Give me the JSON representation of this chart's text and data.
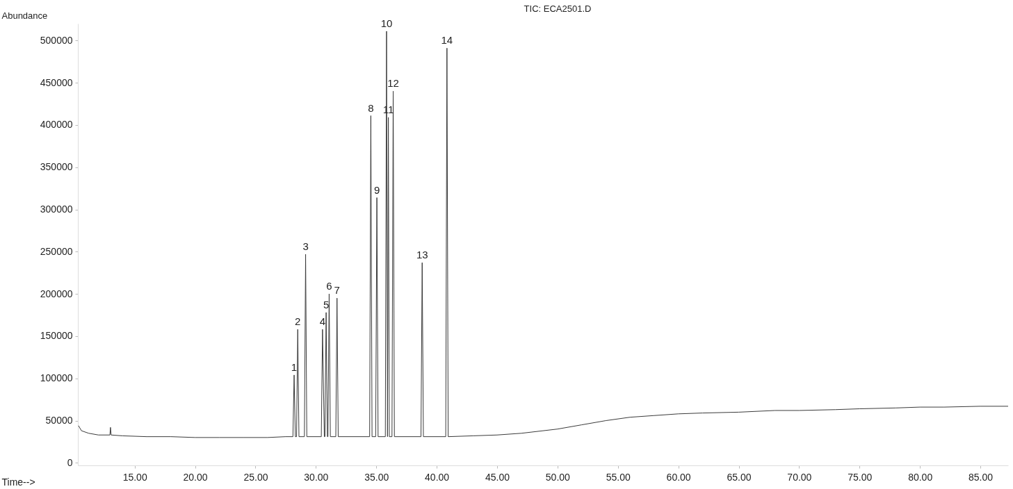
{
  "chart_data": {
    "type": "line",
    "title": "TIC: ECA2501.D",
    "xlabel": "Time-->",
    "ylabel": "Abundance",
    "x": [
      10.35,
      10.6,
      11.2,
      12.0,
      12.95,
      13.0,
      13.05,
      14,
      16,
      18,
      20,
      22,
      24,
      26,
      27.5,
      28.1,
      28.2,
      28.3,
      28.4,
      28.5,
      28.6,
      29.05,
      29.15,
      29.25,
      30.45,
      30.55,
      30.7,
      30.75,
      30.85,
      30.95,
      31.0,
      31.1,
      31.2,
      31.65,
      31.75,
      31.85,
      34.45,
      34.55,
      34.65,
      34.95,
      35.05,
      35.15,
      35.75,
      35.85,
      35.93,
      36.0,
      36.08,
      36.3,
      36.4,
      36.5,
      38.7,
      38.8,
      38.9,
      40.75,
      40.85,
      40.95,
      43,
      45,
      47,
      50,
      52,
      54,
      56,
      58,
      60,
      62,
      65,
      68,
      70,
      73,
      75,
      78,
      80,
      82,
      85,
      87.3
    ],
    "series": [
      {
        "color": "#3a3a3a",
        "values": [
          44000,
          38000,
          35000,
          33000,
          33000,
          42000,
          33000,
          32000,
          31000,
          31000,
          30000,
          30000,
          30000,
          30000,
          31000,
          31000,
          104000,
          31000,
          31000,
          158000,
          31000,
          31000,
          247000,
          31000,
          31000,
          158000,
          31000,
          31000,
          178000,
          31000,
          31000,
          200000,
          31000,
          31000,
          195000,
          31000,
          31000,
          411000,
          31000,
          31000,
          314000,
          31000,
          31000,
          511000,
          31000,
          409000,
          31000,
          31000,
          440000,
          31000,
          31000,
          237000,
          31000,
          31000,
          491000,
          31000,
          32000,
          33000,
          35000,
          40000,
          45000,
          50000,
          54000,
          56000,
          58000,
          59000,
          60000,
          62000,
          62000,
          63000,
          64000,
          65000,
          66000,
          66000,
          67000,
          67000
        ]
      }
    ],
    "xlim": [
      10.3,
      87.3
    ],
    "xticks": [
      {
        "value": 15,
        "label": "15.00"
      },
      {
        "value": 20,
        "label": "20.00"
      },
      {
        "value": 25,
        "label": "25.00"
      },
      {
        "value": 30,
        "label": "30.00"
      },
      {
        "value": 35,
        "label": "35.00"
      },
      {
        "value": 40,
        "label": "40.00"
      },
      {
        "value": 45,
        "label": "45.00"
      },
      {
        "value": 50,
        "label": "50.00"
      },
      {
        "value": 55,
        "label": "55.00"
      },
      {
        "value": 60,
        "label": "60.00"
      },
      {
        "value": 65,
        "label": "65.00"
      },
      {
        "value": 70,
        "label": "70.00"
      },
      {
        "value": 75,
        "label": "75.00"
      },
      {
        "value": 80,
        "label": "80.00"
      },
      {
        "value": 85,
        "label": "85.00"
      }
    ],
    "ylim": [
      -3000,
      520000
    ],
    "yticks": [
      0,
      50000,
      100000,
      150000,
      200000,
      250000,
      300000,
      350000,
      400000,
      450000,
      500000
    ],
    "grid": false,
    "annotations": [
      {
        "text": "1",
        "x": 28.2,
        "y": 104000
      },
      {
        "text": "2",
        "x": 28.5,
        "y": 158000
      },
      {
        "text": "3",
        "x": 29.15,
        "y": 247000
      },
      {
        "text": "4",
        "x": 30.55,
        "y": 158000
      },
      {
        "text": "5",
        "x": 30.85,
        "y": 178000
      },
      {
        "text": "6",
        "x": 31.1,
        "y": 200000
      },
      {
        "text": "7",
        "x": 31.75,
        "y": 195000
      },
      {
        "text": "8",
        "x": 34.55,
        "y": 411000
      },
      {
        "text": "9",
        "x": 35.05,
        "y": 314000
      },
      {
        "text": "10",
        "x": 35.85,
        "y": 511000
      },
      {
        "text": "11",
        "x": 36.0,
        "y": 409000
      },
      {
        "text": "12",
        "x": 36.4,
        "y": 440000
      },
      {
        "text": "13",
        "x": 38.8,
        "y": 237000
      },
      {
        "text": "14",
        "x": 40.85,
        "y": 491000
      }
    ]
  }
}
